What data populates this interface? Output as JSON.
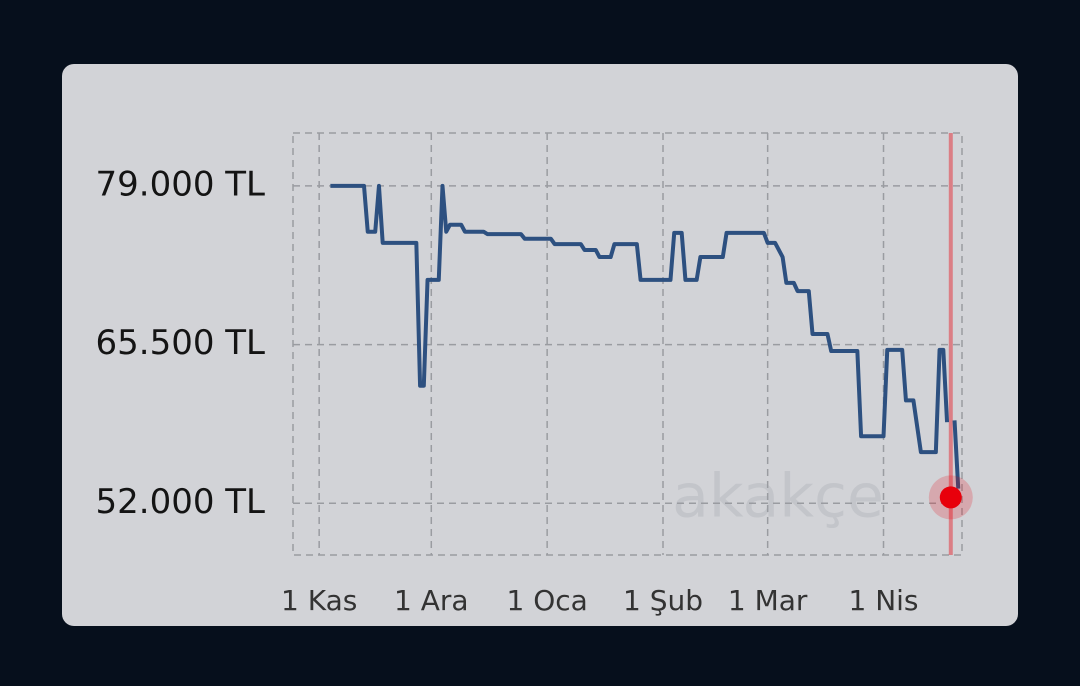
{
  "chart_data": {
    "type": "line",
    "watermark": "akakçe",
    "x": [
      3,
      12,
      13,
      15,
      16,
      17,
      26,
      27,
      28,
      29,
      32,
      33,
      34,
      35,
      38,
      39,
      44,
      45,
      54,
      55,
      62,
      63,
      70,
      71,
      74,
      75,
      78,
      79,
      85,
      86,
      94,
      95,
      97,
      98,
      101,
      102,
      108,
      109,
      119,
      120,
      122,
      124,
      125,
      127,
      128,
      131,
      132,
      136,
      137,
      144,
      145,
      151,
      152,
      156,
      157,
      159,
      161,
      165,
      166,
      167,
      168,
      169,
      170,
      171
    ],
    "values": [
      79000,
      79000,
      75100,
      75100,
      79000,
      74150,
      74150,
      62000,
      62000,
      71000,
      71000,
      79000,
      75100,
      75700,
      75700,
      75100,
      75100,
      74900,
      74900,
      74500,
      74500,
      74050,
      74050,
      73550,
      73550,
      72950,
      72950,
      74050,
      74050,
      71000,
      71000,
      75000,
      75000,
      71000,
      71000,
      72950,
      72950,
      75000,
      75000,
      74150,
      74150,
      72950,
      70750,
      70750,
      70050,
      70050,
      66400,
      66400,
      64950,
      64950,
      57700,
      57700,
      65050,
      65050,
      60750,
      60750,
      56350,
      56350,
      65050,
      65050,
      58900,
      null,
      59050,
      53250
    ],
    "color": "#2d5080",
    "highlight": {
      "x": 169,
      "value": 52500,
      "color": "#e8000b"
    },
    "xlim": [
      -7,
      172
    ],
    "xticks": [
      {
        "value": 0,
        "label": "1 Kas"
      },
      {
        "value": 30,
        "label": "1 Ara"
      },
      {
        "value": 61,
        "label": "1 Oca"
      },
      {
        "value": 92,
        "label": "1 Şub"
      },
      {
        "value": 120,
        "label": "1 Mar"
      },
      {
        "value": 151,
        "label": "1 Nis"
      }
    ],
    "ylim": [
      47600,
      83500
    ],
    "yticks": [
      {
        "value": 52000,
        "label": "52.000 TL"
      },
      {
        "value": 65500,
        "label": "65.500 TL"
      },
      {
        "value": 79000,
        "label": "79.000 TL"
      }
    ],
    "grid": true
  }
}
